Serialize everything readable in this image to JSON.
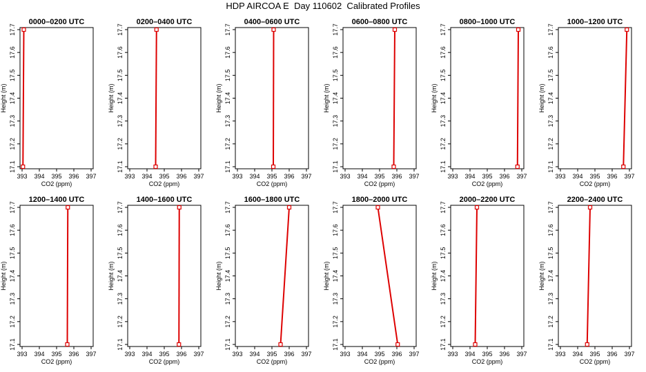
{
  "title": "HDP AIRCOA E  Day 110602  Calibrated Profiles",
  "chart_data": {
    "type": "line",
    "title": "HDP AIRCOA E  Day 110602  Calibrated Profiles",
    "xlabel": "CO2 (ppm)",
    "ylabel": "Height (m)",
    "xlim": [
      393,
      397
    ],
    "ylim": [
      17.1,
      17.7
    ],
    "xticks": [
      "393",
      "394",
      "395",
      "396",
      "397"
    ],
    "yticks": [
      "17.1",
      "17.2",
      "17.3",
      "17.4",
      "17.5",
      "17.6",
      "17.7"
    ],
    "line_color": "#dd0000",
    "marker": "open-square",
    "panels": [
      {
        "title": "0000–0200 UTC",
        "points": [
          {
            "x": 393.05,
            "y": 17.1
          },
          {
            "x": 393.1,
            "y": 17.7
          }
        ]
      },
      {
        "title": "0200–0400 UTC",
        "points": [
          {
            "x": 394.5,
            "y": 17.1
          },
          {
            "x": 394.55,
            "y": 17.7
          }
        ]
      },
      {
        "title": "0400–0600 UTC",
        "points": [
          {
            "x": 395.08,
            "y": 17.1
          },
          {
            "x": 395.1,
            "y": 17.7
          }
        ]
      },
      {
        "title": "0600–0800 UTC",
        "points": [
          {
            "x": 395.82,
            "y": 17.1
          },
          {
            "x": 395.88,
            "y": 17.7
          }
        ]
      },
      {
        "title": "0800–1000 UTC",
        "points": [
          {
            "x": 396.75,
            "y": 17.1
          },
          {
            "x": 396.8,
            "y": 17.7
          }
        ]
      },
      {
        "title": "1000–1200 UTC",
        "points": [
          {
            "x": 396.65,
            "y": 17.1
          },
          {
            "x": 396.85,
            "y": 17.7
          }
        ]
      },
      {
        "title": "1200–1400 UTC",
        "points": [
          {
            "x": 395.62,
            "y": 17.1
          },
          {
            "x": 395.65,
            "y": 17.7
          }
        ]
      },
      {
        "title": "1400–1600 UTC",
        "points": [
          {
            "x": 395.85,
            "y": 17.1
          },
          {
            "x": 395.87,
            "y": 17.7
          }
        ]
      },
      {
        "title": "1600–1800 UTC",
        "points": [
          {
            "x": 395.5,
            "y": 17.1
          },
          {
            "x": 396.0,
            "y": 17.7
          }
        ]
      },
      {
        "title": "1800–2000 UTC",
        "points": [
          {
            "x": 396.05,
            "y": 17.1
          },
          {
            "x": 394.9,
            "y": 17.7
          }
        ]
      },
      {
        "title": "2000–2200 UTC",
        "points": [
          {
            "x": 394.3,
            "y": 17.1
          },
          {
            "x": 394.4,
            "y": 17.7
          }
        ]
      },
      {
        "title": "2200–2400 UTC",
        "points": [
          {
            "x": 394.55,
            "y": 17.1
          },
          {
            "x": 394.72,
            "y": 17.7
          }
        ]
      }
    ]
  }
}
